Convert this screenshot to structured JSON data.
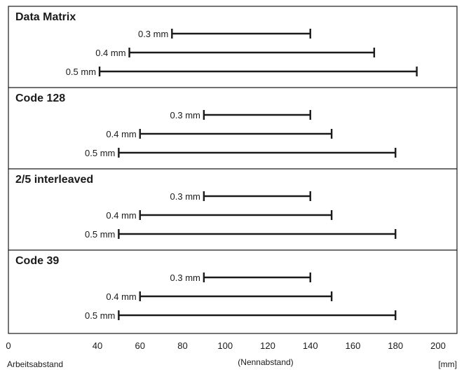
{
  "chart_data": {
    "type": "range",
    "xlim": [
      0,
      200
    ],
    "x_ticks": [
      "0",
      "40",
      "60",
      "80",
      "100",
      "120",
      "140",
      "160",
      "180",
      "200"
    ],
    "xlabel": "(Nennabstand)",
    "x_left_label": "Arbeitsabstand",
    "x_unit": "[mm]",
    "grid": false,
    "panels": [
      {
        "title": "Data Matrix",
        "rows": [
          {
            "label": "0.3 mm",
            "start": 75,
            "end": 140
          },
          {
            "label": "0.4 mm",
            "start": 55,
            "end": 170
          },
          {
            "label": "0.5 mm",
            "start": 41,
            "end": 190
          }
        ]
      },
      {
        "title": "Code 128",
        "rows": [
          {
            "label": "0.3 mm",
            "start": 90,
            "end": 140
          },
          {
            "label": "0.4 mm",
            "start": 60,
            "end": 150
          },
          {
            "label": "0.5 mm",
            "start": 50,
            "end": 180
          }
        ]
      },
      {
        "title": "2/5 interleaved",
        "rows": [
          {
            "label": "0.3 mm",
            "start": 90,
            "end": 140
          },
          {
            "label": "0.4 mm",
            "start": 60,
            "end": 150
          },
          {
            "label": "0.5 mm",
            "start": 50,
            "end": 180
          }
        ]
      },
      {
        "title": "Code 39",
        "rows": [
          {
            "label": "0.3 mm",
            "start": 90,
            "end": 140
          },
          {
            "label": "0.4 mm",
            "start": 60,
            "end": 150
          },
          {
            "label": "0.5 mm",
            "start": 50,
            "end": 180
          }
        ]
      }
    ]
  }
}
